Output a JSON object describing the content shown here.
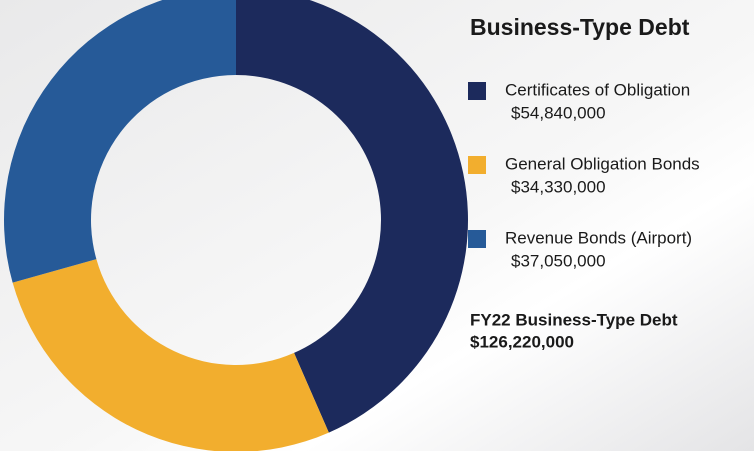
{
  "chart_data": {
    "type": "donut",
    "title": "Business-Type Debt",
    "categories": [
      "Certificates of Obligation",
      "General Obligation Bonds",
      "Revenue Bonds (Airport)"
    ],
    "values": [
      54840000,
      34330000,
      37050000
    ],
    "value_labels": [
      "$54,840,000",
      "$34,330,000",
      "$37,050,000"
    ],
    "colors": [
      "#1c2a5c",
      "#f2ae2e",
      "#265a98"
    ],
    "total": {
      "label": "FY22 Business-Type Debt",
      "value": 126220000,
      "value_label": "$126,220,000"
    }
  }
}
